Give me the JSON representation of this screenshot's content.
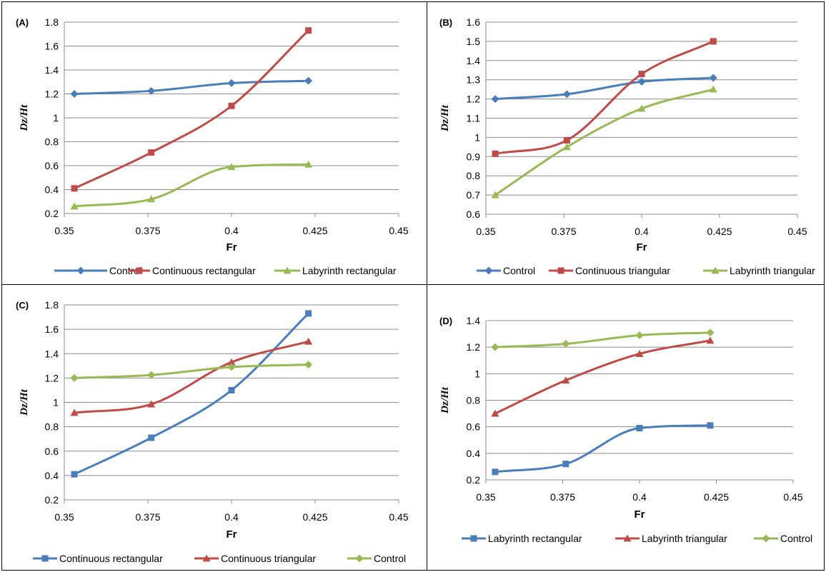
{
  "chart_data": [
    {
      "type": "line",
      "panel_label": "(A)",
      "xlabel": "Fr",
      "ylabel": "Dz/Ht",
      "xlim": [
        0.35,
        0.45
      ],
      "ylim": [
        0.2,
        1.8
      ],
      "xticks": [
        "0.35",
        "0.375",
        "0.4",
        "0.425",
        "0.45"
      ],
      "yticks": [
        "0.2",
        "0.4",
        "0.6",
        "0.8",
        "1",
        "1.2",
        "1.4",
        "1.6",
        "1.8"
      ],
      "x": [
        0.353,
        0.376,
        0.4,
        0.423
      ],
      "legend_position": "bottom",
      "series": [
        {
          "name": "Control",
          "color": "#4a7ebb",
          "marker": "diamond",
          "values": [
            1.2,
            1.225,
            1.29,
            1.31
          ]
        },
        {
          "name": "Continuous rectangular",
          "color": "#be4b48",
          "marker": "square",
          "values": [
            0.41,
            0.71,
            1.1,
            1.73
          ]
        },
        {
          "name": "Labyrinth rectangular",
          "color": "#98b954",
          "marker": "triangle",
          "values": [
            0.26,
            0.32,
            0.59,
            0.61
          ]
        }
      ]
    },
    {
      "type": "line",
      "panel_label": "(B)",
      "xlabel": "Fr",
      "ylabel": "Dz/Ht",
      "xlim": [
        0.35,
        0.45
      ],
      "ylim": [
        0.6,
        1.6
      ],
      "xticks": [
        "0.35",
        "0.375",
        "0.4",
        "0.425",
        "0.45"
      ],
      "yticks": [
        "0.6",
        "0.7",
        "0.8",
        "0.9",
        "1",
        "1.1",
        "1.2",
        "1.3",
        "1.4",
        "1.5",
        "1.6"
      ],
      "x": [
        0.353,
        0.376,
        0.4,
        0.423
      ],
      "legend_position": "bottom",
      "series": [
        {
          "name": "Control",
          "color": "#4a7ebb",
          "marker": "diamond",
          "values": [
            1.2,
            1.225,
            1.29,
            1.31
          ]
        },
        {
          "name": "Continuous triangular",
          "color": "#be4b48",
          "marker": "square",
          "values": [
            0.915,
            0.985,
            1.33,
            1.5
          ]
        },
        {
          "name": "Labyrinth triangular",
          "color": "#98b954",
          "marker": "triangle",
          "values": [
            0.7,
            0.95,
            1.15,
            1.25
          ]
        }
      ]
    },
    {
      "type": "line",
      "panel_label": "(C)",
      "xlabel": "Fr",
      "ylabel": "Dz/Ht",
      "xlim": [
        0.35,
        0.45
      ],
      "ylim": [
        0.2,
        1.8
      ],
      "xticks": [
        "0.35",
        "0.375",
        "0.4",
        "0.425",
        "0.45"
      ],
      "yticks": [
        "0.2",
        "0.4",
        "0.6",
        "0.8",
        "1",
        "1.2",
        "1.4",
        "1.6",
        "1.8"
      ],
      "x": [
        0.353,
        0.376,
        0.4,
        0.423
      ],
      "legend_position": "bottom",
      "series": [
        {
          "name": "Continuous rectangular",
          "color": "#4a7ebb",
          "marker": "square",
          "values": [
            0.41,
            0.71,
            1.1,
            1.73
          ]
        },
        {
          "name": "Continuous triangular",
          "color": "#be4b48",
          "marker": "triangle",
          "values": [
            0.915,
            0.985,
            1.33,
            1.5
          ]
        },
        {
          "name": "Control",
          "color": "#98b954",
          "marker": "diamond",
          "values": [
            1.2,
            1.225,
            1.29,
            1.31
          ]
        }
      ]
    },
    {
      "type": "line",
      "panel_label": "(D)",
      "xlabel": "Fr",
      "ylabel": "Dz/Ht",
      "xlim": [
        0.35,
        0.45
      ],
      "ylim": [
        0.2,
        1.4
      ],
      "xticks": [
        "0.35",
        "0.375",
        "0.4",
        "0.425",
        "0.45"
      ],
      "yticks": [
        "0.2",
        "0.4",
        "0.6",
        "0.8",
        "1",
        "1.2",
        "1.4"
      ],
      "x": [
        0.353,
        0.376,
        0.4,
        0.423
      ],
      "legend_position": "bottom",
      "series": [
        {
          "name": "Labyrinth rectangular",
          "color": "#4a7ebb",
          "marker": "square",
          "values": [
            0.26,
            0.32,
            0.59,
            0.61
          ]
        },
        {
          "name": "Labyrinth triangular",
          "color": "#be4b48",
          "marker": "triangle",
          "values": [
            0.7,
            0.95,
            1.15,
            1.25
          ]
        },
        {
          "name": "Control",
          "color": "#98b954",
          "marker": "diamond",
          "values": [
            1.2,
            1.225,
            1.29,
            1.31
          ]
        }
      ]
    }
  ]
}
